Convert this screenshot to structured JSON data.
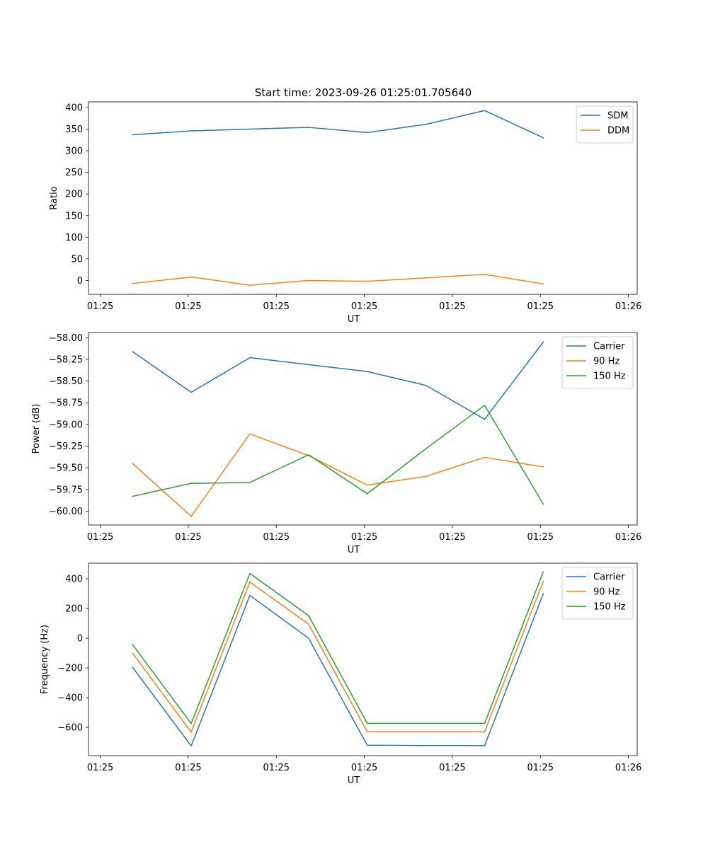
{
  "figure": {
    "title": "Start time: 2023-09-26 01:25:01.705640"
  },
  "colors": {
    "blue": "#1f77b4",
    "orange": "#ff7f0e",
    "green": "#2ca02c"
  },
  "chart_data": [
    {
      "type": "line",
      "title": "Start time: 2023-09-26 01:25:01.705640",
      "xlabel": "UT",
      "ylabel": "Ratio",
      "x": [
        0,
        1,
        2,
        3,
        4,
        5,
        6,
        7
      ],
      "xlim": [
        -0.75,
        8.6
      ],
      "xticks": [
        -0.55,
        0.95,
        2.45,
        3.95,
        5.45,
        6.95,
        8.45
      ],
      "xtick_labels": [
        "01:25",
        "01:25",
        "01:25",
        "01:25",
        "01:25",
        "01:25",
        "01:26"
      ],
      "ylim": [
        -32,
        413
      ],
      "yticks": [
        0,
        50,
        100,
        150,
        200,
        250,
        300,
        350,
        400
      ],
      "legend_position": "top-right",
      "series": [
        {
          "name": "SDM",
          "color": "#1f77b4",
          "values": [
            337,
            346,
            350,
            354,
            342,
            361,
            393,
            330
          ]
        },
        {
          "name": "DDM",
          "color": "#ff7f0e",
          "values": [
            -7,
            8,
            -11,
            0,
            -2,
            6,
            14,
            -8
          ]
        }
      ]
    },
    {
      "type": "line",
      "xlabel": "UT",
      "ylabel": "Power (dB)",
      "x": [
        0,
        1,
        2,
        3,
        4,
        5,
        6,
        7
      ],
      "xlim": [
        -0.75,
        8.6
      ],
      "xticks": [
        -0.55,
        0.95,
        2.45,
        3.95,
        5.45,
        6.95,
        8.45
      ],
      "xtick_labels": [
        "01:25",
        "01:25",
        "01:25",
        "01:25",
        "01:25",
        "01:25",
        "01:26"
      ],
      "ylim": [
        -60.16,
        -57.94
      ],
      "yticks": [
        -60.0,
        -59.75,
        -59.5,
        -59.25,
        -59.0,
        -58.75,
        -58.5,
        -58.25,
        -58.0
      ],
      "ytick_labels": [
        "−60.00",
        "−59.75",
        "−59.50",
        "−59.25",
        "−59.00",
        "−58.75",
        "−58.50",
        "−58.25",
        "−58.00"
      ],
      "legend_position": "top-right",
      "series": [
        {
          "name": "Carrier",
          "color": "#1f77b4",
          "values": [
            -58.16,
            -58.63,
            -58.23,
            -58.31,
            -58.39,
            -58.55,
            -58.94,
            -58.05
          ]
        },
        {
          "name": "90 Hz",
          "color": "#ff7f0e",
          "values": [
            -59.45,
            -60.06,
            -59.11,
            -59.36,
            -59.7,
            -59.6,
            -59.38,
            -59.49
          ]
        },
        {
          "name": "150 Hz",
          "color": "#2ca02c",
          "values": [
            -59.83,
            -59.68,
            -59.67,
            -59.35,
            -59.8,
            -59.28,
            -58.78,
            -59.92
          ]
        }
      ]
    },
    {
      "type": "line",
      "xlabel": "UT",
      "ylabel": "Frequency (Hz)",
      "x": [
        0,
        1,
        2,
        3,
        4,
        5,
        6,
        7
      ],
      "xlim": [
        -0.75,
        8.6
      ],
      "xticks": [
        -0.55,
        0.95,
        2.45,
        3.95,
        5.45,
        6.95,
        8.45
      ],
      "xtick_labels": [
        "01:25",
        "01:25",
        "01:25",
        "01:25",
        "01:25",
        "01:25",
        "01:26"
      ],
      "ylim": [
        -790,
        505
      ],
      "yticks": [
        -600,
        -400,
        -200,
        0,
        200,
        400
      ],
      "ytick_labels": [
        "−600",
        "−400",
        "−200",
        "0",
        "200",
        "400"
      ],
      "legend_position": "top-right",
      "series": [
        {
          "name": "Carrier",
          "color": "#1f77b4",
          "values": [
            -195,
            -725,
            288,
            0,
            -720,
            -722,
            -723,
            300
          ]
        },
        {
          "name": "90 Hz",
          "color": "#ff7f0e",
          "values": [
            -100,
            -632,
            378,
            95,
            -630,
            -630,
            -630,
            383
          ]
        },
        {
          "name": "150 Hz",
          "color": "#2ca02c",
          "values": [
            -42,
            -575,
            436,
            152,
            -573,
            -573,
            -573,
            447
          ]
        }
      ]
    }
  ]
}
